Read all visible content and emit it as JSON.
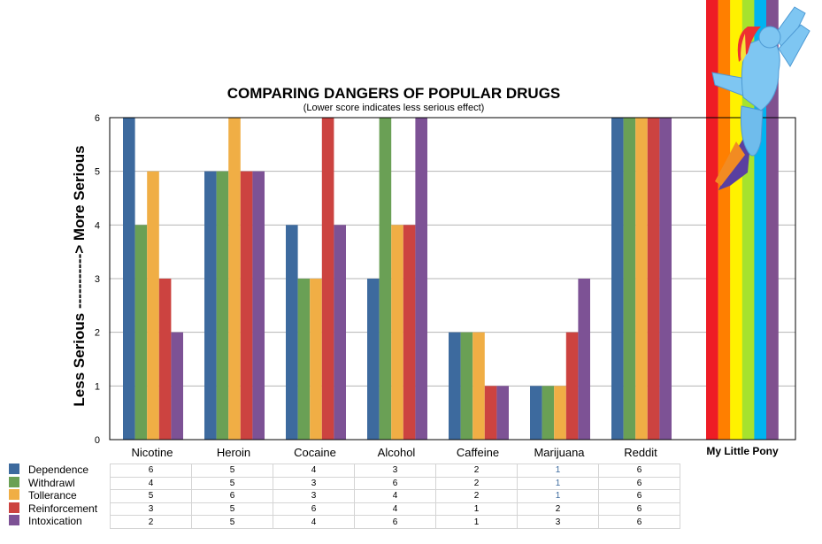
{
  "chart_data": {
    "type": "bar",
    "title": "COMPARING DANGERS OF POPULAR DRUGS",
    "subtitle": "(Lower score indicates less serious effect)",
    "ylabel": "Less Serious -----------> More Serious",
    "ylim": [
      0,
      6
    ],
    "yticks": [
      "0",
      "1",
      "2",
      "3",
      "4",
      "5",
      "6"
    ],
    "grid": true,
    "legend_placement": "bottom-left",
    "categories": [
      "Nicotine",
      "Heroin",
      "Cocaine",
      "Alcohol",
      "Caffeine",
      "Marijuana",
      "Reddit"
    ],
    "series": [
      {
        "name": "Dependence",
        "color": "#3d6a9e",
        "values": [
          6,
          5,
          4,
          3,
          2,
          1,
          6
        ]
      },
      {
        "name": "Withdrawl",
        "color": "#6aa055",
        "values": [
          4,
          5,
          3,
          6,
          2,
          1,
          6
        ]
      },
      {
        "name": "Tollerance",
        "color": "#f0ae45",
        "values": [
          5,
          6,
          3,
          4,
          2,
          1,
          6
        ]
      },
      {
        "name": "Reinforcement",
        "color": "#cc4340",
        "values": [
          3,
          5,
          6,
          4,
          1,
          2,
          6
        ]
      },
      {
        "name": "Intoxication",
        "color": "#7d5295",
        "values": [
          2,
          5,
          4,
          6,
          1,
          3,
          6
        ]
      }
    ],
    "extra_category": {
      "label": "My Little Pony",
      "rainbow_colors": [
        "#ee1c25",
        "#ff7f00",
        "#fff200",
        "#a6e22e",
        "#00b3f0",
        "#80508f"
      ],
      "exceeds_axis": true,
      "image": "rainbow-dash-pony"
    }
  }
}
